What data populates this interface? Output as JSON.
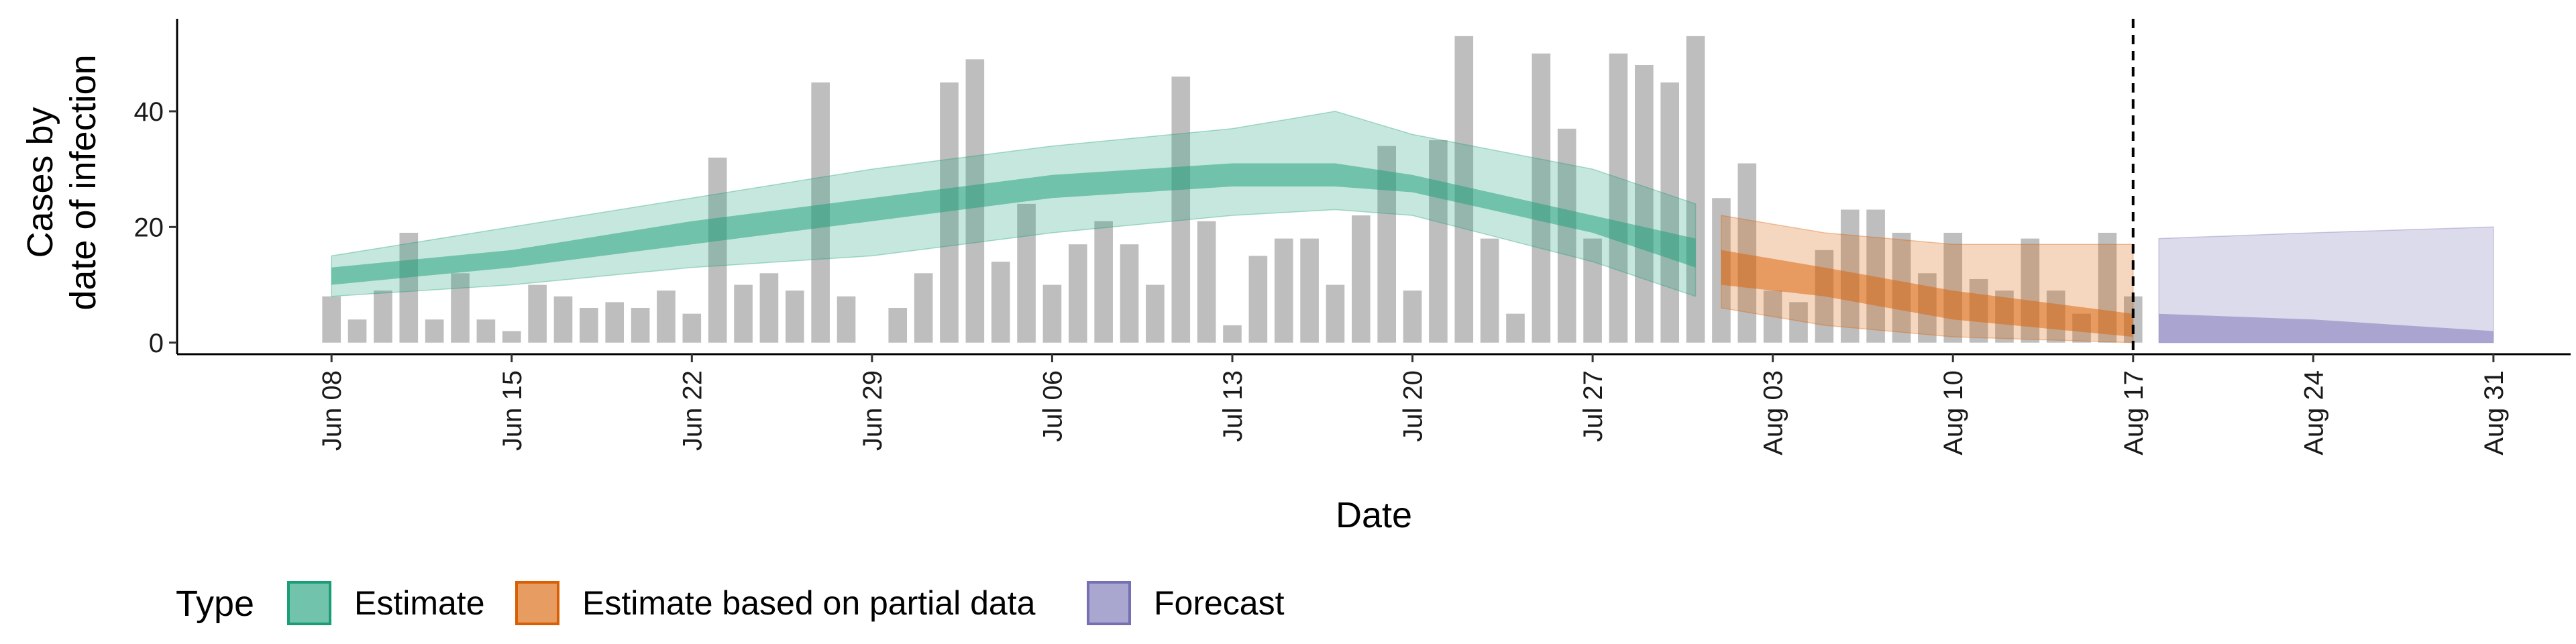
{
  "chart_data": {
    "type": "bar",
    "xlabel": "Date",
    "ylabel_lines": [
      "Cases by",
      "date of infection"
    ],
    "x_ticks": [
      "Jun 08",
      "Jun 15",
      "Jun 22",
      "Jun 29",
      "Jul 06",
      "Jul 13",
      "Jul 20",
      "Jul 27",
      "Aug 03",
      "Aug 10",
      "Aug 17",
      "Aug 24",
      "Aug 31"
    ],
    "y_ticks": [
      0,
      20,
      40
    ],
    "ylim": [
      -2,
      56
    ],
    "xlim": [
      "2020-06-02",
      "2020-09-03"
    ],
    "forecast_date": "2020-08-17",
    "bar_color": "#bebebe",
    "reported_cases": {
      "dates": [
        "2020-06-08",
        "2020-06-09",
        "2020-06-10",
        "2020-06-11",
        "2020-06-12",
        "2020-06-13",
        "2020-06-14",
        "2020-06-15",
        "2020-06-16",
        "2020-06-17",
        "2020-06-18",
        "2020-06-19",
        "2020-06-20",
        "2020-06-21",
        "2020-06-22",
        "2020-06-23",
        "2020-06-24",
        "2020-06-25",
        "2020-06-26",
        "2020-06-27",
        "2020-06-28",
        "2020-06-29",
        "2020-06-30",
        "2020-07-01",
        "2020-07-02",
        "2020-07-03",
        "2020-07-04",
        "2020-07-05",
        "2020-07-06",
        "2020-07-07",
        "2020-07-08",
        "2020-07-09",
        "2020-07-10",
        "2020-07-11",
        "2020-07-12",
        "2020-07-13",
        "2020-07-14",
        "2020-07-15",
        "2020-07-16",
        "2020-07-17",
        "2020-07-18",
        "2020-07-19",
        "2020-07-20",
        "2020-07-21",
        "2020-07-22",
        "2020-07-23",
        "2020-07-24",
        "2020-07-25",
        "2020-07-26",
        "2020-07-27",
        "2020-07-28",
        "2020-07-29",
        "2020-07-30",
        "2020-07-31",
        "2020-08-01",
        "2020-08-02",
        "2020-08-03",
        "2020-08-04",
        "2020-08-05",
        "2020-08-06",
        "2020-08-07",
        "2020-08-08",
        "2020-08-09",
        "2020-08-10",
        "2020-08-11",
        "2020-08-12",
        "2020-08-13",
        "2020-08-14",
        "2020-08-15",
        "2020-08-16",
        "2020-08-17"
      ],
      "values": [
        8,
        4,
        9,
        19,
        4,
        12,
        4,
        2,
        10,
        8,
        6,
        7,
        6,
        9,
        5,
        32,
        10,
        12,
        9,
        45,
        8,
        0,
        6,
        12,
        45,
        49,
        14,
        24,
        10,
        17,
        21,
        17,
        10,
        46,
        21,
        3,
        15,
        18,
        18,
        10,
        22,
        34,
        9,
        35,
        53,
        18,
        5,
        50,
        37,
        18,
        50,
        48,
        45,
        53,
        25,
        31,
        9,
        7,
        16,
        23,
        23,
        19,
        12,
        19,
        11,
        9,
        18,
        9,
        5,
        19,
        8
      ]
    },
    "series": [
      {
        "name": "Estimate",
        "color": "#1b9e77",
        "dates": [
          "2020-06-08",
          "2020-06-15",
          "2020-06-22",
          "2020-06-29",
          "2020-07-06",
          "2020-07-13",
          "2020-07-17",
          "2020-07-20",
          "2020-07-27",
          "2020-07-31"
        ],
        "lower90": [
          8,
          10,
          13,
          15,
          19,
          22,
          23,
          22,
          14,
          8
        ],
        "lower50": [
          10,
          13,
          17,
          21,
          25,
          27,
          27,
          26,
          19,
          13
        ],
        "upper50": [
          13,
          16,
          21,
          25,
          29,
          31,
          31,
          29,
          22,
          18
        ],
        "upper90": [
          15,
          20,
          25,
          30,
          34,
          37,
          40,
          36,
          30,
          24
        ]
      },
      {
        "name": "Estimate based on partial data",
        "color": "#d95f02",
        "dates": [
          "2020-08-01",
          "2020-08-05",
          "2020-08-10",
          "2020-08-17"
        ],
        "lower90": [
          6,
          3,
          1,
          0
        ],
        "lower50": [
          10,
          8,
          4,
          1
        ],
        "upper50": [
          16,
          13,
          9,
          5
        ],
        "upper90": [
          22,
          19,
          17,
          17
        ]
      },
      {
        "name": "Forecast",
        "color": "#7570b3",
        "dates": [
          "2020-08-18",
          "2020-08-24",
          "2020-08-31"
        ],
        "lower90": [
          0,
          0,
          0
        ],
        "lower50": [
          0,
          0,
          0
        ],
        "upper50": [
          5,
          4,
          2
        ],
        "upper90": [
          18,
          19,
          20
        ]
      }
    ],
    "legend": {
      "title": "Type",
      "position": "bottom",
      "items": [
        {
          "label": "Estimate",
          "color": "#1b9e77"
        },
        {
          "label": "Estimate based on partial data",
          "color": "#d95f02"
        },
        {
          "label": "Forecast",
          "color": "#7570b3"
        }
      ]
    },
    "grid": false
  }
}
